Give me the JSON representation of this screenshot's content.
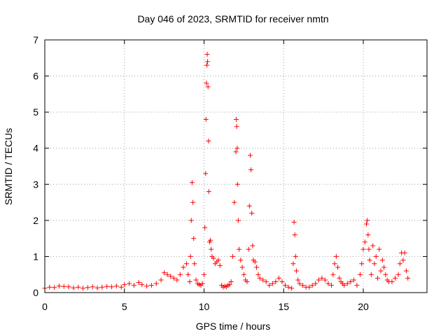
{
  "chart_data": {
    "type": "scatter",
    "title": "Day 046 of 2023, SRMTID for receiver nmtn",
    "xlabel": "GPS time / hours",
    "ylabel": "SRMTID / TECUs",
    "xlim": [
      0,
      24
    ],
    "ylim": [
      0,
      7
    ],
    "xticks": [
      0,
      5,
      10,
      15,
      20
    ],
    "yticks": [
      0,
      1,
      2,
      3,
      4,
      5,
      6,
      7
    ],
    "grid": true,
    "marker": "+",
    "colors": {
      "series": "#ff0000",
      "grid": "#a0a0a0",
      "axis": "#000000"
    },
    "series": [
      {
        "name": "SRMTID",
        "x": [
          0.0,
          0.3,
          0.6,
          0.9,
          1.2,
          1.5,
          1.8,
          2.1,
          2.4,
          2.7,
          3.0,
          3.3,
          3.6,
          3.9,
          4.2,
          4.5,
          4.8,
          5.0,
          5.3,
          5.6,
          5.9,
          6.1,
          6.4,
          6.7,
          7.0,
          7.3,
          7.5,
          7.7,
          7.9,
          8.1,
          8.3,
          8.5,
          8.7,
          8.9,
          9.0,
          9.1,
          9.15,
          9.2,
          9.25,
          9.3,
          9.35,
          9.4,
          9.5,
          9.6,
          9.7,
          9.8,
          9.9,
          10.0,
          10.05,
          10.1,
          10.12,
          10.15,
          10.18,
          10.2,
          10.22,
          10.25,
          10.28,
          10.3,
          10.35,
          10.4,
          10.45,
          10.5,
          10.6,
          10.7,
          10.8,
          10.9,
          11.0,
          11.1,
          11.2,
          11.3,
          11.4,
          11.5,
          11.6,
          11.7,
          11.8,
          11.9,
          12.0,
          12.02,
          12.05,
          12.08,
          12.1,
          12.15,
          12.2,
          12.3,
          12.4,
          12.5,
          12.6,
          12.7,
          12.8,
          12.85,
          12.9,
          12.95,
          13.0,
          13.05,
          13.1,
          13.2,
          13.3,
          13.4,
          13.5,
          13.7,
          13.9,
          14.1,
          14.3,
          14.5,
          14.7,
          14.9,
          15.1,
          15.3,
          15.5,
          15.6,
          15.65,
          15.7,
          15.75,
          15.8,
          15.9,
          16.0,
          16.2,
          16.4,
          16.6,
          16.8,
          17.0,
          17.2,
          17.4,
          17.6,
          17.8,
          18.0,
          18.1,
          18.2,
          18.3,
          18.4,
          18.5,
          18.6,
          18.7,
          18.8,
          19.0,
          19.2,
          19.4,
          19.6,
          19.8,
          19.9,
          20.0,
          20.1,
          20.2,
          20.25,
          20.3,
          20.35,
          20.4,
          20.5,
          20.6,
          20.7,
          20.8,
          20.9,
          21.0,
          21.1,
          21.2,
          21.3,
          21.4,
          21.5,
          21.6,
          21.8,
          22.0,
          22.2,
          22.3,
          22.4,
          22.5,
          22.6,
          22.7,
          22.8
        ],
        "y": [
          0.12,
          0.15,
          0.14,
          0.18,
          0.17,
          0.16,
          0.13,
          0.15,
          0.12,
          0.14,
          0.16,
          0.13,
          0.15,
          0.17,
          0.16,
          0.18,
          0.15,
          0.22,
          0.25,
          0.2,
          0.28,
          0.22,
          0.18,
          0.2,
          0.25,
          0.35,
          0.55,
          0.5,
          0.45,
          0.4,
          0.35,
          0.5,
          0.7,
          0.8,
          0.5,
          0.3,
          1.0,
          2.0,
          3.05,
          2.5,
          1.5,
          0.8,
          0.35,
          0.25,
          0.22,
          0.2,
          0.25,
          0.5,
          1.8,
          3.3,
          4.8,
          5.8,
          6.3,
          6.6,
          6.4,
          5.7,
          4.2,
          2.8,
          1.4,
          1.45,
          1.2,
          1.0,
          0.95,
          0.8,
          0.85,
          0.9,
          0.75,
          0.2,
          0.15,
          0.18,
          0.16,
          0.2,
          0.22,
          0.3,
          1.0,
          2.5,
          3.9,
          4.8,
          4.6,
          4.0,
          3.0,
          2.0,
          1.2,
          0.9,
          0.7,
          0.5,
          0.35,
          0.3,
          1.2,
          2.4,
          3.8,
          3.4,
          2.2,
          1.3,
          0.9,
          0.85,
          0.7,
          0.5,
          0.4,
          0.35,
          0.3,
          0.2,
          0.25,
          0.3,
          0.4,
          0.3,
          0.2,
          0.15,
          0.12,
          0.8,
          1.95,
          1.6,
          1.0,
          0.6,
          0.35,
          0.25,
          0.2,
          0.15,
          0.15,
          0.2,
          0.25,
          0.35,
          0.4,
          0.35,
          0.25,
          0.2,
          0.5,
          0.8,
          1.0,
          0.7,
          0.4,
          0.3,
          0.25,
          0.2,
          0.25,
          0.3,
          0.35,
          0.2,
          0.5,
          0.8,
          1.2,
          1.4,
          1.9,
          2.0,
          1.6,
          1.2,
          0.9,
          0.5,
          1.3,
          0.8,
          1.0,
          0.4,
          1.2,
          0.6,
          0.9,
          0.7,
          0.5,
          0.35,
          0.3,
          0.3,
          0.4,
          0.5,
          0.8,
          1.1,
          0.9,
          1.1,
          0.6,
          0.4
        ]
      }
    ]
  }
}
